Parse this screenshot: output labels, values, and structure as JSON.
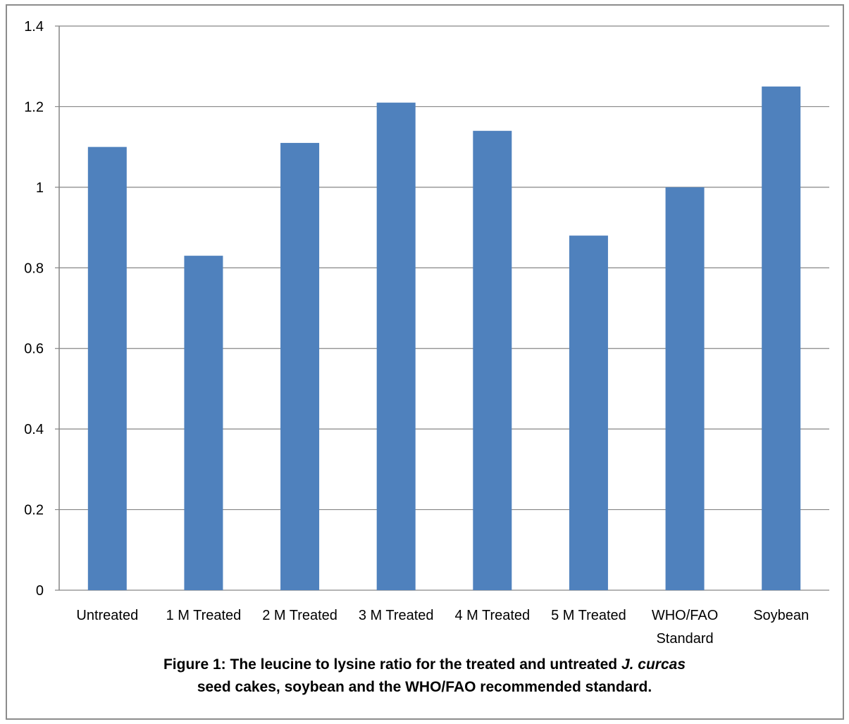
{
  "chart_data": {
    "type": "bar",
    "categories": [
      "Untreated",
      "1 M Treated",
      "2 M Treated",
      "3 M Treated",
      "4 M Treated",
      "5 M Treated",
      "WHO/FAO Standard",
      "Soybean"
    ],
    "values": [
      1.1,
      0.83,
      1.11,
      1.21,
      1.14,
      0.88,
      1.0,
      1.25
    ],
    "yticks": [
      "0",
      "0.2",
      "0.4",
      "0.6",
      "0.8",
      "1",
      "1.2",
      "1.4"
    ],
    "ylim": [
      0,
      1.4
    ],
    "grid": true,
    "legend": "none",
    "bar_color": "#4f81bd",
    "title": "",
    "xlabel": "",
    "ylabel": ""
  },
  "caption": {
    "line1_prefix": "Figure 1: The leucine to lysine ratio for the treated and untreated ",
    "line1_italic": "J. curcas",
    "line2": "seed cakes, soybean and the WHO/FAO recommended standard."
  }
}
